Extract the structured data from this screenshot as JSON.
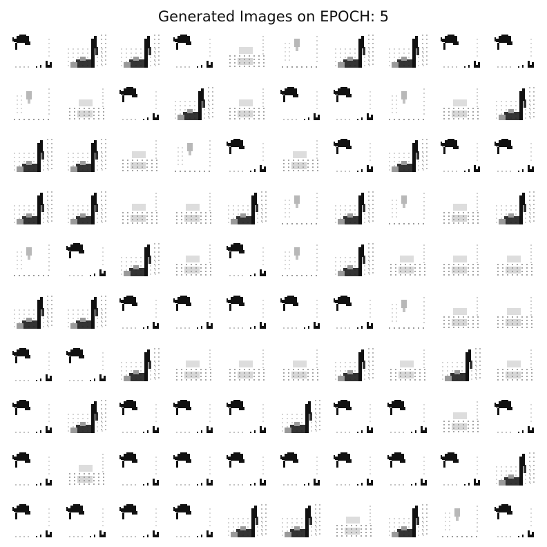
{
  "figure": {
    "title": "Generated Images on EPOCH: 5"
  },
  "grid": {
    "rows": 10,
    "cols": 10,
    "pattern_legend": {
      "A": "blob top-left with small marks at bottom-right",
      "B": "tall stroke on right with dense dark base",
      "C": "faint columns of dots",
      "F": "faint small smudge with dotted base"
    },
    "patterns": [
      [
        "A",
        "B",
        "B",
        "A",
        "C",
        "F",
        "B",
        "B",
        "A",
        "A"
      ],
      [
        "F",
        "C",
        "A",
        "B",
        "C",
        "A",
        "A",
        "F",
        "C",
        "B"
      ],
      [
        "B",
        "B",
        "C",
        "F",
        "A",
        "C",
        "A",
        "B",
        "A",
        "A"
      ],
      [
        "B",
        "B",
        "C",
        "C",
        "B",
        "F",
        "B",
        "F",
        "C",
        "B"
      ],
      [
        "F",
        "A",
        "B",
        "C",
        "A",
        "F",
        "B",
        "C",
        "C",
        "C"
      ],
      [
        "B",
        "B",
        "A",
        "A",
        "A",
        "A",
        "A",
        "F",
        "C",
        "C"
      ],
      [
        "A",
        "A",
        "B",
        "C",
        "C",
        "C",
        "B",
        "C",
        "B",
        "C"
      ],
      [
        "A",
        "B",
        "A",
        "A",
        "A",
        "B",
        "A",
        "A",
        "C",
        "A"
      ],
      [
        "A",
        "C",
        "A",
        "A",
        "A",
        "A",
        "A",
        "A",
        "A",
        "B"
      ],
      [
        "A",
        "A",
        "A",
        "A",
        "B",
        "B",
        "C",
        "B",
        "F",
        "A"
      ]
    ],
    "colors": {
      "ink": "#111111",
      "light": "#9a9a9a",
      "faint": "#cfcfcf",
      "background": "#ffffff"
    }
  }
}
